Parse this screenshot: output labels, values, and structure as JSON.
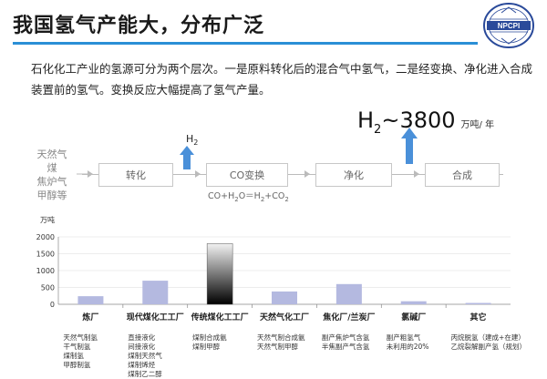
{
  "slide": {
    "title": "我国氢气产能大，分布广泛",
    "intro": "石化化工产业的氢源可分为两个层次。一是原料转化后的混合气中氢气，二是经变换、净化进入合成装置前的氢气。变换反应大幅提高了氢气产量。",
    "logo_text": "NPCPI"
  },
  "production": {
    "h": "H",
    "sub": "2",
    "value": "~3800",
    "unit": "万吨/ 年"
  },
  "process": {
    "feedstocks": [
      "天然气",
      "煤",
      "焦炉气",
      "甲醇等"
    ],
    "steps": [
      "转化",
      "CO变换",
      "净化",
      "合成"
    ],
    "h2_label": {
      "h": "H",
      "sub": "2"
    },
    "equation": {
      "a": "CO+H",
      "b": "2",
      "c": "O＝H",
      "d": "2",
      "e": "+CO",
      "f": "2"
    }
  },
  "chart_data": {
    "type": "bar",
    "ylabel": "万吨",
    "ylim": [
      0,
      2000
    ],
    "yticks": [
      0,
      500,
      1000,
      1500,
      2000
    ],
    "categories": [
      "炼厂",
      "现代煤化工工厂",
      "传统煤化工工厂",
      "天然气化工厂",
      "焦化厂/兰炭厂",
      "氯碱厂",
      "其它"
    ],
    "values": [
      240,
      700,
      1800,
      380,
      600,
      90,
      40
    ],
    "colors": {
      "bar": "#b4b9e0",
      "highlight_top": "#f2f2f2",
      "highlight_bottom": "#000000",
      "axis": "#888888",
      "grid": "#d9d9d9"
    },
    "notes": [
      [
        "天然气制氢",
        "干气制氢",
        "煤制氢",
        "甲醇制氢"
      ],
      [
        "直接液化",
        "间接液化",
        "煤制天然气",
        "煤制烯烃",
        "煤制乙二醇"
      ],
      [
        "煤制合成氨",
        "煤制甲醇"
      ],
      [
        "天然气制合成氨",
        "天然气制甲醇"
      ],
      [
        "副产焦炉气含氢",
        "半焦副产气含氢"
      ],
      [
        "副产粗氢气",
        "未利用的20%"
      ],
      [
        "丙烷脱氢（建成+在建）",
        "乙烷裂解副产氢（规划）"
      ]
    ]
  }
}
